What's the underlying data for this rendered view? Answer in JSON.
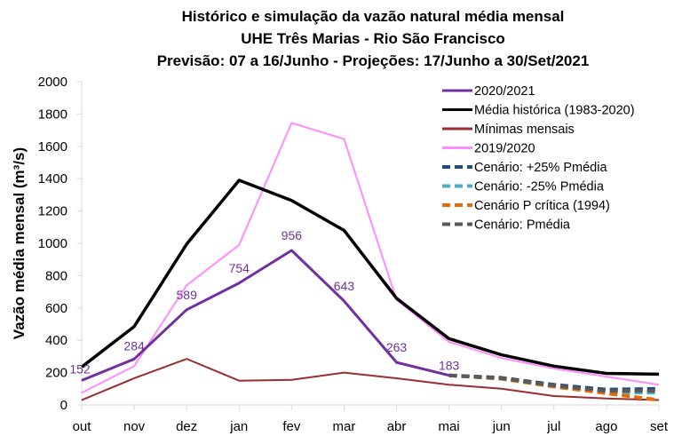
{
  "chart_data": {
    "type": "line",
    "title": [
      "Histórico e simulação da vazão natural média mensal",
      "UHE Três Marias - Rio São Francisco",
      "Previsão: 07 a 16/Junho - Projeções: 17/Junho a 30/Set/2021"
    ],
    "xlabel": "",
    "ylabel": "Vazão média mensal (m³/s)",
    "ylim": [
      0,
      2000
    ],
    "yticks": [
      0,
      200,
      400,
      600,
      800,
      1000,
      1200,
      1400,
      1600,
      1800,
      2000
    ],
    "categories": [
      "out",
      "nov",
      "dez",
      "jan",
      "fev",
      "mar",
      "abr",
      "mai",
      "jun",
      "jul",
      "ago",
      "set"
    ],
    "grid": false,
    "legend_position": "top-right",
    "series": [
      {
        "name": "2020/2021",
        "color": "#7030a0",
        "dash": false,
        "width": 3,
        "values": [
          152,
          284,
          589,
          754,
          956,
          643,
          263,
          183,
          null,
          null,
          null,
          null
        ],
        "labels": true
      },
      {
        "name": "Média histórica (1983-2020)",
        "color": "#000000",
        "dash": false,
        "width": 3.5,
        "values": [
          235,
          485,
          995,
          1390,
          1265,
          1080,
          660,
          410,
          310,
          240,
          195,
          190
        ]
      },
      {
        "name": "Mínimas mensais",
        "color": "#9b2d30",
        "dash": false,
        "width": 2,
        "values": [
          30,
          165,
          285,
          150,
          155,
          200,
          165,
          125,
          100,
          55,
          40,
          30
        ]
      },
      {
        "name": "2019/2020",
        "color": "#ff8cff",
        "dash": false,
        "width": 2,
        "values": [
          75,
          240,
          740,
          990,
          1745,
          1645,
          650,
          390,
          290,
          225,
          175,
          125
        ]
      },
      {
        "name": "Cenário: +25% Pmédia",
        "color": "#1f4e79",
        "dash": true,
        "width": 4,
        "values": [
          null,
          null,
          null,
          null,
          null,
          null,
          null,
          183,
          168,
          125,
          95,
          100
        ]
      },
      {
        "name": "Cenário: -25% Pmédia",
        "color": "#4bacc6",
        "dash": true,
        "width": 4,
        "values": [
          null,
          null,
          null,
          null,
          null,
          null,
          null,
          183,
          163,
          116,
          78,
          75
        ]
      },
      {
        "name": "Cenário P crítica (1994)",
        "color": "#e36c0a",
        "dash": true,
        "width": 4,
        "values": [
          null,
          null,
          null,
          null,
          null,
          null,
          null,
          183,
          162,
          113,
          72,
          30
        ]
      },
      {
        "name": "Cenário: Pmédia",
        "color": "#595959",
        "dash": true,
        "width": 4,
        "values": [
          null,
          null,
          null,
          null,
          null,
          null,
          null,
          183,
          165,
          120,
          86,
          88
        ]
      }
    ]
  }
}
